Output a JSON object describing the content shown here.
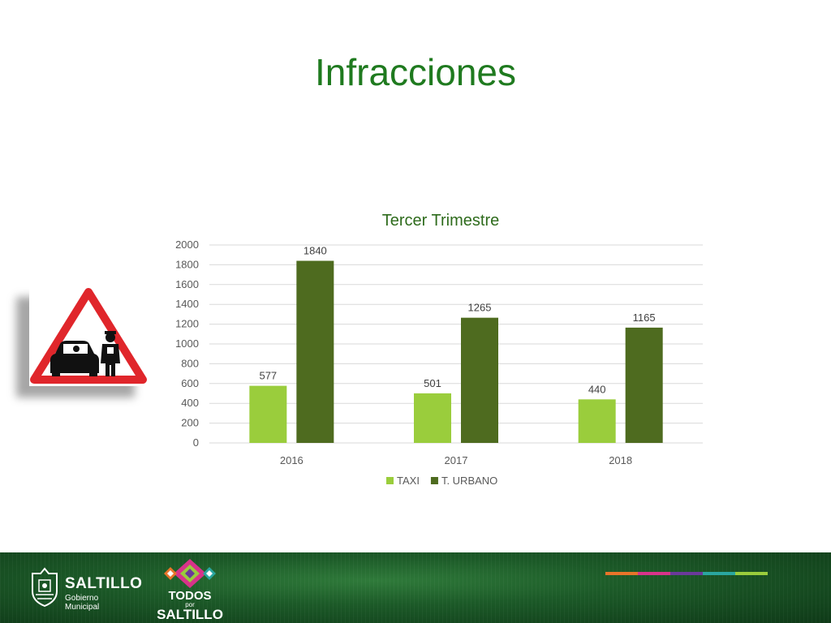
{
  "slide": {
    "title": "Infracciones"
  },
  "chart_data": {
    "type": "bar",
    "title": "Tercer Trimestre",
    "categories": [
      "2016",
      "2017",
      "2018"
    ],
    "series": [
      {
        "name": "TAXI",
        "values": [
          577,
          501,
          440
        ],
        "color": "#9acd3c"
      },
      {
        "name": "T. URBANO",
        "values": [
          1840,
          1265,
          1165
        ],
        "color": "#4e6b1f"
      }
    ],
    "ylim": [
      0,
      2000
    ],
    "yticks": [
      0,
      200,
      400,
      600,
      800,
      1000,
      1200,
      1400,
      1600,
      1800,
      2000
    ],
    "grid": true,
    "legend": "bottom",
    "data_labels": true
  },
  "footer": {
    "logo_name": "SALTILLO",
    "logo_sub": "Gobierno Municipal",
    "todos_line1": "TODOS",
    "todos_line2": "por",
    "todos_line3": "SALTILLO",
    "stripe_colors": [
      "#e8742a",
      "#d8338a",
      "#6a3a9a",
      "#2aa6a0",
      "#9acd3c"
    ]
  },
  "icons": {
    "sign": "traffic-stop-warning-sign-icon",
    "seal": "municipal-seal-icon",
    "todos_emblem": "diamond-pattern-emblem-icon"
  }
}
